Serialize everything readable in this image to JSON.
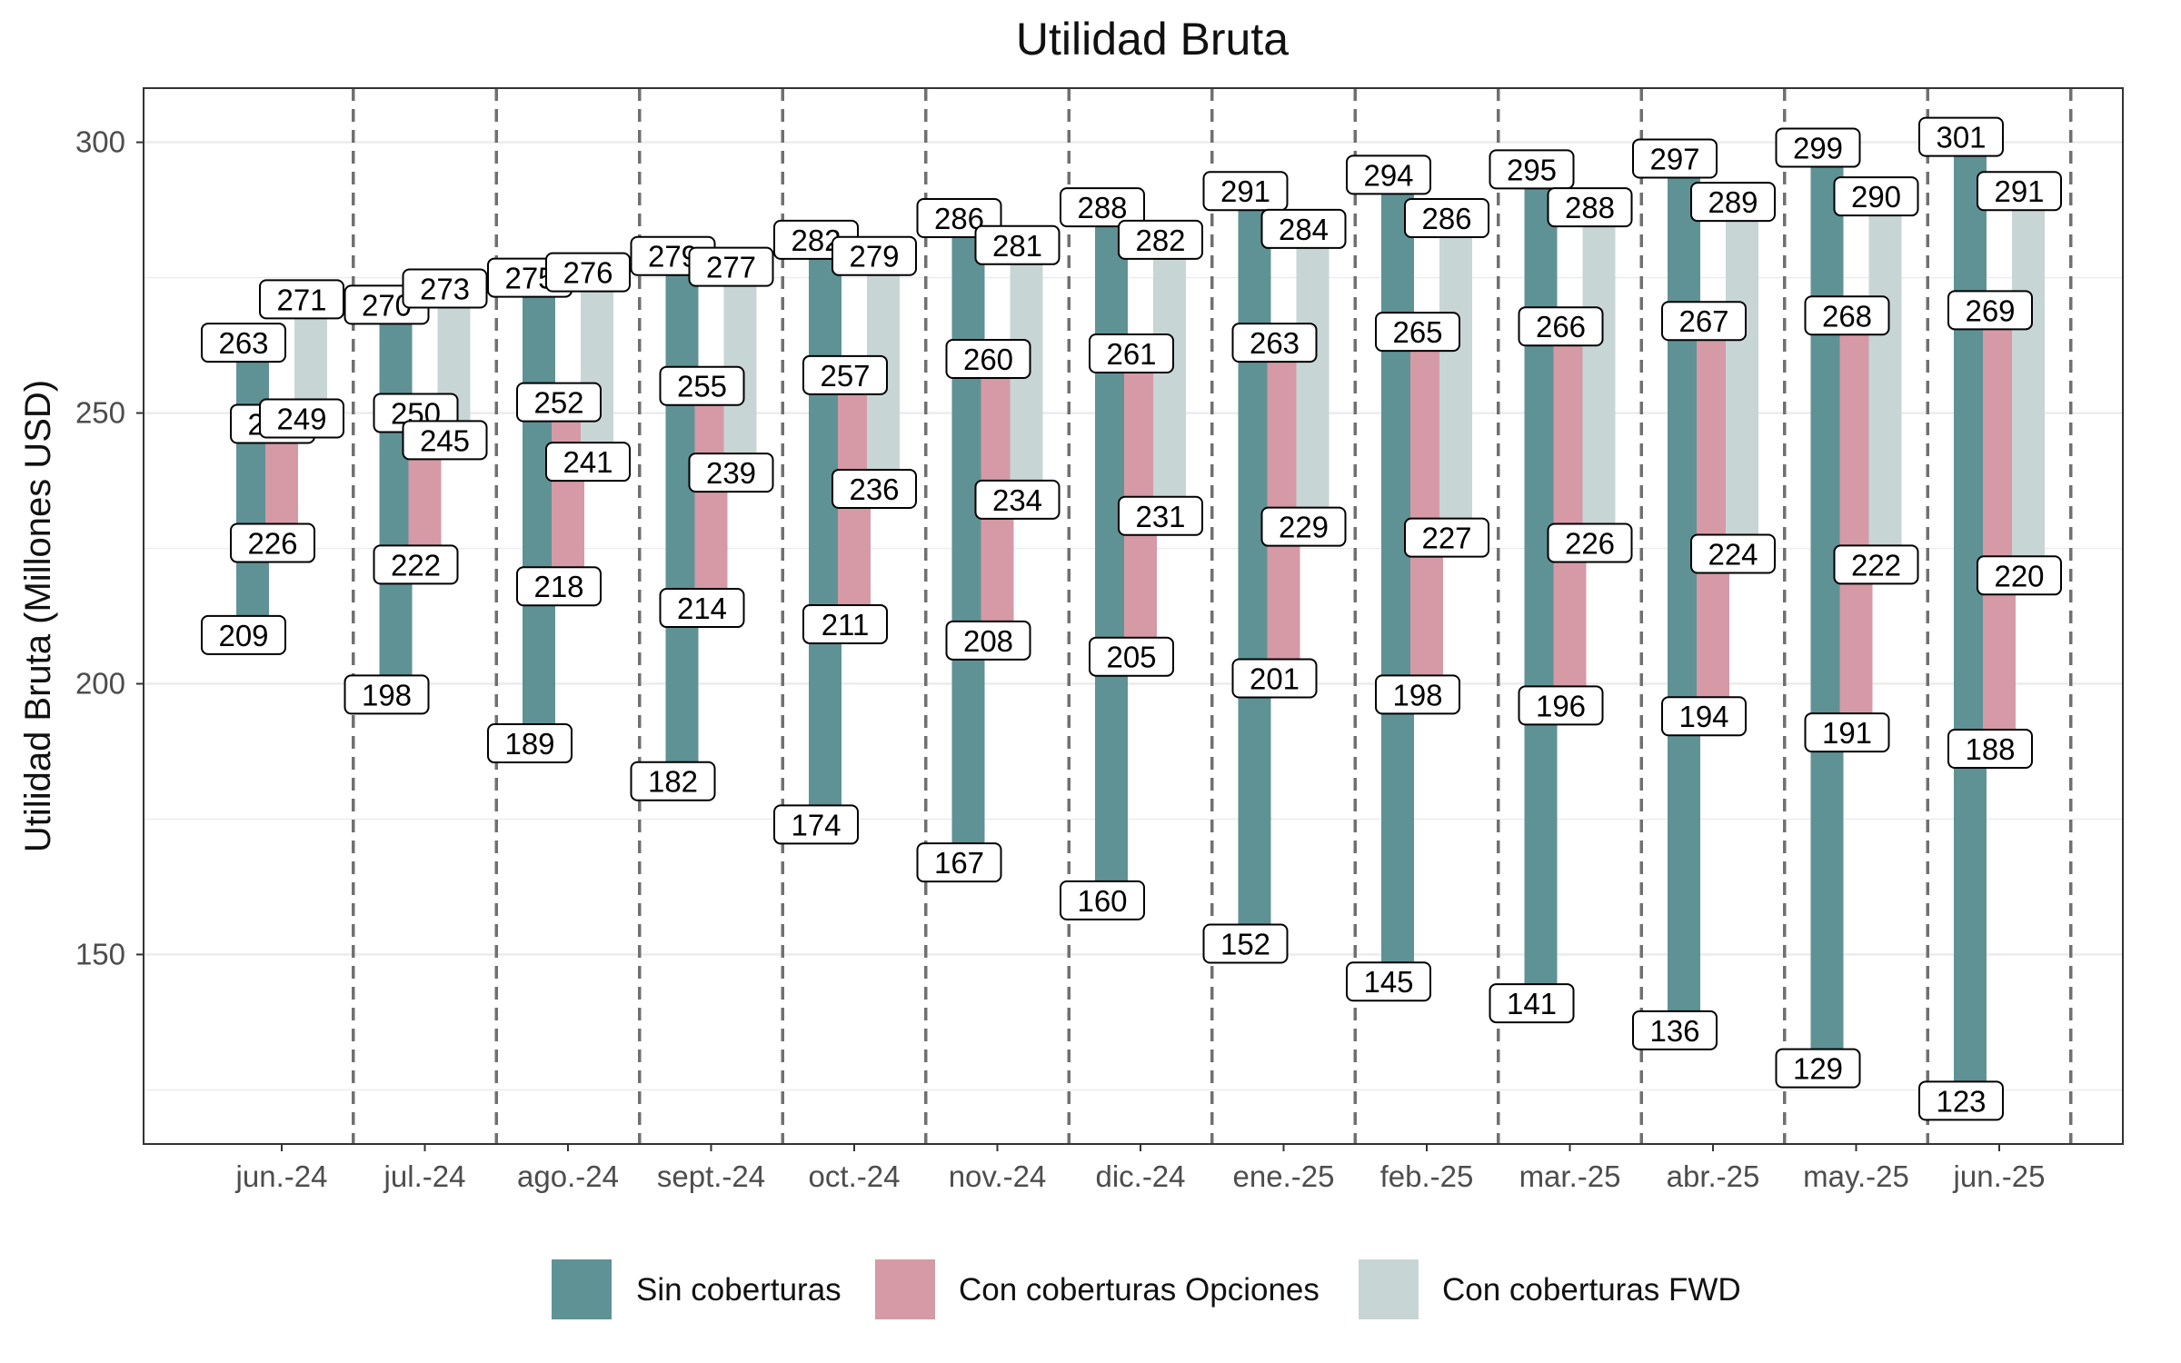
{
  "chart_data": {
    "type": "bar",
    "subtype": "floating-range",
    "title": "Utilidad Bruta",
    "xlabel": "",
    "ylabel": "Utilidad Bruta (Millones USD)",
    "ylim": [
      115,
      310
    ],
    "yticks": [
      150,
      200,
      250,
      300
    ],
    "grid": true,
    "legend_position": "bottom",
    "categories": [
      "jun.-24",
      "jul.-24",
      "ago.-24",
      "sept.-24",
      "oct.-24",
      "nov.-24",
      "dic.-24",
      "ene.-25",
      "feb.-25",
      "mar.-25",
      "abr.-25",
      "may.-25",
      "jun.-25"
    ],
    "series": [
      {
        "name": "Sin coberturas",
        "color": "#5f9295",
        "low": [
          "209",
          "198",
          "189",
          "182",
          "174",
          "167",
          "160",
          "152",
          "145",
          "141",
          "136",
          "129",
          "123"
        ],
        "high": [
          "263",
          "270",
          "275",
          "279",
          "282",
          "286",
          "288",
          "291",
          "294",
          "295",
          "297",
          "299",
          "301"
        ]
      },
      {
        "name": "Con coberturas Opciones",
        "color": "#d59aa6",
        "low": [
          "226",
          "222",
          "218",
          "214",
          "211",
          "208",
          "205",
          "201",
          "198",
          "196",
          "194",
          "191",
          "188"
        ],
        "high": [
          "248",
          "250",
          "252",
          "255",
          "257",
          "260",
          "261",
          "263",
          "265",
          "266",
          "267",
          "268",
          "269"
        ]
      },
      {
        "name": "Con coberturas FWD",
        "color": "#c8d5d5",
        "low": [
          "249",
          "245",
          "241",
          "239",
          "236",
          "234",
          "231",
          "229",
          "227",
          "226",
          "224",
          "222",
          "220"
        ],
        "high": [
          "271",
          "273",
          "276",
          "277",
          "279",
          "281",
          "282",
          "284",
          "286",
          "288",
          "289",
          "290",
          "291"
        ]
      }
    ]
  }
}
